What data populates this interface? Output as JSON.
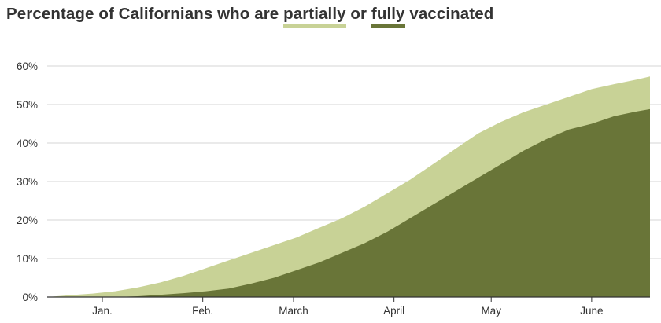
{
  "title": {
    "prefix": "Percentage of Californians who are ",
    "partial_word": "partially",
    "middle": " or ",
    "full_word": "fully",
    "suffix": " vaccinated"
  },
  "colors": {
    "partial": "#c8d296",
    "full": "#697538",
    "grid": "#d6d6d6",
    "axis": "#333333",
    "text": "#333333"
  },
  "chart_data": {
    "type": "area",
    "title": "Percentage of Californians who are partially or fully vaccinated",
    "xlabel": "",
    "ylabel": "",
    "x_range": [
      "2020-12-15",
      "2021-06-19"
    ],
    "x_ticks": [
      {
        "date": "2021-01-01",
        "label": "Jan."
      },
      {
        "date": "2021-02-01",
        "label": "Feb."
      },
      {
        "date": "2021-03-01",
        "label": "March"
      },
      {
        "date": "2021-04-01",
        "label": "April"
      },
      {
        "date": "2021-05-01",
        "label": "May"
      },
      {
        "date": "2021-06-01",
        "label": "June"
      }
    ],
    "ylim": [
      0,
      60
    ],
    "y_ticks": [
      0,
      10,
      20,
      30,
      40,
      50,
      60
    ],
    "y_tick_labels": [
      "0%",
      "10%",
      "20%",
      "30%",
      "40%",
      "50%",
      "60%"
    ],
    "grid": true,
    "legend": "title",
    "series": [
      {
        "name": "partially",
        "x": [
          "2020-12-15",
          "2020-12-22",
          "2020-12-29",
          "2021-01-05",
          "2021-01-12",
          "2021-01-19",
          "2021-01-26",
          "2021-02-02",
          "2021-02-09",
          "2021-02-16",
          "2021-02-23",
          "2021-03-02",
          "2021-03-09",
          "2021-03-16",
          "2021-03-23",
          "2021-03-30",
          "2021-04-06",
          "2021-04-13",
          "2021-04-20",
          "2021-04-27",
          "2021-05-04",
          "2021-05-11",
          "2021-05-18",
          "2021-05-25",
          "2021-06-01",
          "2021-06-08",
          "2021-06-15",
          "2021-06-19"
        ],
        "values": [
          0.0,
          0.5,
          0.9,
          1.5,
          2.5,
          3.8,
          5.5,
          7.5,
          9.5,
          11.5,
          13.5,
          15.5,
          18.0,
          20.5,
          23.5,
          27.0,
          30.5,
          34.5,
          38.5,
          42.5,
          45.5,
          48.0,
          50.0,
          52.0,
          54.0,
          55.3,
          56.5,
          57.3
        ]
      },
      {
        "name": "fully",
        "x": [
          "2020-12-15",
          "2020-12-22",
          "2020-12-29",
          "2021-01-05",
          "2021-01-12",
          "2021-01-19",
          "2021-01-26",
          "2021-02-02",
          "2021-02-09",
          "2021-02-16",
          "2021-02-23",
          "2021-03-02",
          "2021-03-09",
          "2021-03-16",
          "2021-03-23",
          "2021-03-30",
          "2021-04-06",
          "2021-04-13",
          "2021-04-20",
          "2021-04-27",
          "2021-05-04",
          "2021-05-11",
          "2021-05-18",
          "2021-05-25",
          "2021-06-01",
          "2021-06-08",
          "2021-06-15",
          "2021-06-19"
        ],
        "values": [
          0.0,
          0.0,
          0.0,
          0.0,
          0.2,
          0.6,
          1.0,
          1.5,
          2.2,
          3.5,
          5.0,
          7.0,
          9.0,
          11.5,
          14.0,
          17.0,
          20.5,
          24.0,
          27.5,
          31.0,
          34.5,
          38.0,
          41.0,
          43.5,
          45.0,
          47.0,
          48.2,
          48.8
        ]
      }
    ]
  }
}
